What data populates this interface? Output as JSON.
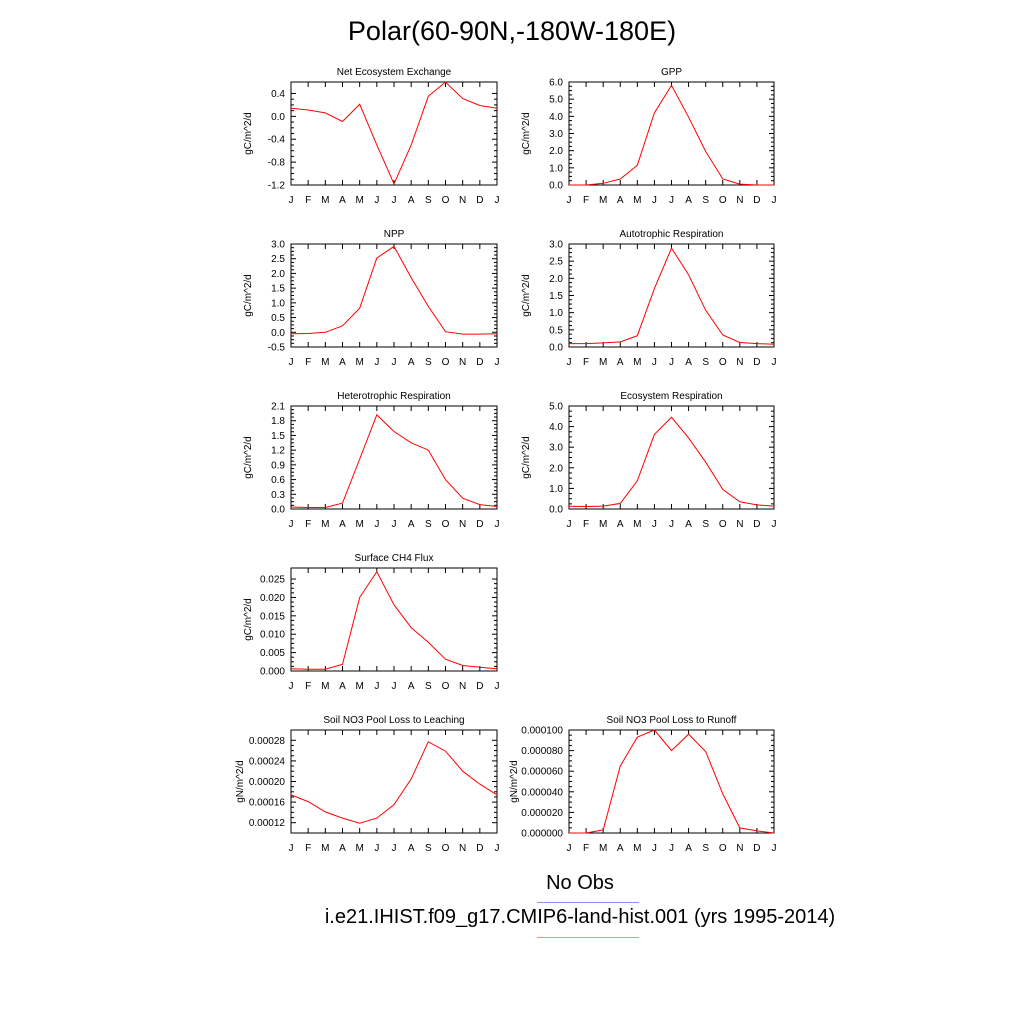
{
  "figure": {
    "title": "Polar(60-90N,-180W-180E)"
  },
  "legend": {
    "obs_label": "No Obs",
    "obs_color": "#8f8ff0",
    "model_label": "i.e21.IHIST.f09_g17.CMIP6-land-hist.001 (yrs 1995-2014)",
    "model_color": "#f08f8f"
  },
  "chart_data": [
    {
      "type": "line",
      "title": "Net Ecosystem Exchange",
      "ylabel": "gC/m^2/d",
      "xlabel": "",
      "categories": [
        "J",
        "F",
        "M",
        "A",
        "M",
        "J",
        "J",
        "A",
        "S",
        "O",
        "N",
        "D",
        "J"
      ],
      "ylim": [
        -1.2,
        0.6
      ],
      "yticks": [
        -1.2,
        -0.8,
        -0.4,
        0.0,
        0.4
      ],
      "yticklabels": [
        "-1.2",
        "-0.8",
        "-0.4",
        "0.0",
        "0.4"
      ],
      "series": [
        {
          "color": "#ff0000",
          "values": [
            0.14,
            0.11,
            0.06,
            -0.09,
            0.21,
            -0.5,
            -1.18,
            -0.5,
            0.35,
            0.6,
            0.31,
            0.19,
            0.14
          ]
        }
      ]
    },
    {
      "type": "line",
      "title": "GPP",
      "ylabel": "gC/m^2/d",
      "xlabel": "",
      "categories": [
        "J",
        "F",
        "M",
        "A",
        "M",
        "J",
        "J",
        "A",
        "S",
        "O",
        "N",
        "D",
        "J"
      ],
      "ylim": [
        0.0,
        6.0
      ],
      "yticks": [
        0,
        1,
        2,
        3,
        4,
        5,
        6
      ],
      "yticklabels": [
        "0.0",
        "1.0",
        "2.0",
        "3.0",
        "4.0",
        "5.0",
        "6.0"
      ],
      "series": [
        {
          "color": "#ff0000",
          "values": [
            0.0,
            0.0,
            0.1,
            0.35,
            1.15,
            4.2,
            5.8,
            3.95,
            1.95,
            0.35,
            0.05,
            0.0,
            0.0
          ]
        }
      ]
    },
    {
      "type": "line",
      "title": "NPP",
      "ylabel": "gC/m^2/d",
      "xlabel": "",
      "categories": [
        "J",
        "F",
        "M",
        "A",
        "M",
        "J",
        "J",
        "A",
        "S",
        "O",
        "N",
        "D",
        "J"
      ],
      "ylim": [
        -0.5,
        3.0
      ],
      "yticks": [
        -0.5,
        0.0,
        0.5,
        1.0,
        1.5,
        2.0,
        2.5,
        3.0
      ],
      "yticklabels": [
        "-0.5",
        "0.0",
        "0.5",
        "1.0",
        "1.5",
        "2.0",
        "2.5",
        "3.0"
      ],
      "series": [
        {
          "color": "#ff0000",
          "values": [
            -0.05,
            -0.04,
            0.0,
            0.22,
            0.82,
            2.52,
            2.92,
            1.85,
            0.88,
            0.02,
            -0.06,
            -0.06,
            -0.05
          ]
        }
      ]
    },
    {
      "type": "line",
      "title": "Autotrophic Respiration",
      "ylabel": "gC/m^2/d",
      "xlabel": "",
      "categories": [
        "J",
        "F",
        "M",
        "A",
        "M",
        "J",
        "J",
        "A",
        "S",
        "O",
        "N",
        "D",
        "J"
      ],
      "ylim": [
        0.0,
        3.0
      ],
      "yticks": [
        0.0,
        0.5,
        1.0,
        1.5,
        2.0,
        2.5,
        3.0
      ],
      "yticklabels": [
        "0.0",
        "0.5",
        "1.0",
        "1.5",
        "2.0",
        "2.5",
        "3.0"
      ],
      "series": [
        {
          "color": "#ff0000",
          "values": [
            0.1,
            0.1,
            0.12,
            0.15,
            0.33,
            1.7,
            2.88,
            2.1,
            1.07,
            0.35,
            0.13,
            0.1,
            0.08
          ]
        }
      ]
    },
    {
      "type": "line",
      "title": "Heterotrophic Respiration",
      "ylabel": "gC/m^2/d",
      "xlabel": "",
      "categories": [
        "J",
        "F",
        "M",
        "A",
        "M",
        "J",
        "J",
        "A",
        "S",
        "O",
        "N",
        "D",
        "J"
      ],
      "ylim": [
        0.0,
        2.1
      ],
      "yticks": [
        0.0,
        0.3,
        0.6,
        0.9,
        1.2,
        1.5,
        1.8,
        2.1
      ],
      "yticklabels": [
        "0.0",
        "0.3",
        "0.6",
        "0.9",
        "1.2",
        "1.5",
        "1.8",
        "2.1"
      ],
      "series": [
        {
          "color": "#ff0000",
          "values": [
            0.04,
            0.03,
            0.03,
            0.12,
            1.02,
            1.92,
            1.58,
            1.35,
            1.2,
            0.6,
            0.22,
            0.09,
            0.05
          ]
        }
      ]
    },
    {
      "type": "line",
      "title": "Ecosystem Respiration",
      "ylabel": "gC/m^2/d",
      "xlabel": "",
      "categories": [
        "J",
        "F",
        "M",
        "A",
        "M",
        "J",
        "J",
        "A",
        "S",
        "O",
        "N",
        "D",
        "J"
      ],
      "ylim": [
        0.0,
        5.0
      ],
      "yticks": [
        0,
        1,
        2,
        3,
        4,
        5
      ],
      "yticklabels": [
        "0.0",
        "1.0",
        "2.0",
        "3.0",
        "4.0",
        "5.0"
      ],
      "series": [
        {
          "color": "#ff0000",
          "values": [
            0.13,
            0.12,
            0.14,
            0.27,
            1.37,
            3.62,
            4.45,
            3.45,
            2.27,
            0.95,
            0.35,
            0.2,
            0.14
          ]
        }
      ]
    },
    {
      "type": "line",
      "title": "Surface CH4 Flux",
      "ylabel": "gC/m^2/d",
      "xlabel": "",
      "categories": [
        "J",
        "F",
        "M",
        "A",
        "M",
        "J",
        "J",
        "A",
        "S",
        "O",
        "N",
        "D",
        "J"
      ],
      "ylim": [
        0.0,
        0.028
      ],
      "yticks": [
        0.0,
        0.005,
        0.01,
        0.015,
        0.02,
        0.025
      ],
      "yticklabels": [
        "0.000",
        "0.005",
        "0.010",
        "0.015",
        "0.020",
        "0.025"
      ],
      "series": [
        {
          "color": "#ff0000",
          "values": [
            0.0006,
            0.0005,
            0.0005,
            0.0018,
            0.02,
            0.027,
            0.018,
            0.0118,
            0.0078,
            0.0032,
            0.0015,
            0.001,
            0.0006
          ]
        }
      ]
    },
    {
      "type": "line",
      "title": "Soil NO3 Pool Loss to Leaching",
      "ylabel": "gN/m^2/d",
      "xlabel": "",
      "categories": [
        "J",
        "F",
        "M",
        "A",
        "M",
        "J",
        "J",
        "A",
        "S",
        "O",
        "N",
        "D",
        "J"
      ],
      "ylim": [
        0.0001,
        0.0003
      ],
      "yticks": [
        0.00012,
        0.00016,
        0.0002,
        0.00024,
        0.00028
      ],
      "yticklabels": [
        "0.00012",
        "0.00016",
        "0.00020",
        "0.00024",
        "0.00028"
      ],
      "series": [
        {
          "color": "#ff0000",
          "values": [
            0.000174,
            0.000161,
            0.000141,
            0.000129,
            0.000119,
            0.000129,
            0.000155,
            0.000205,
            0.000277,
            0.000259,
            0.00022,
            0.000195,
            0.000174
          ]
        }
      ]
    },
    {
      "type": "line",
      "title": "Soil NO3 Pool Loss to Runoff",
      "ylabel": "gN/m^2/d",
      "xlabel": "",
      "categories": [
        "J",
        "F",
        "M",
        "A",
        "M",
        "J",
        "J",
        "A",
        "S",
        "O",
        "N",
        "D",
        "J"
      ],
      "ylim": [
        0.0,
        0.0001
      ],
      "yticks": [
        0.0,
        2e-05,
        4e-05,
        6e-05,
        8e-05,
        0.0001
      ],
      "yticklabels": [
        "0.000000",
        "0.000020",
        "0.000040",
        "0.000060",
        "0.000080",
        "0.000100"
      ],
      "series": [
        {
          "color": "#ff0000",
          "values": [
            0.0,
            0.0,
            3e-06,
            6.5e-05,
            9.3e-05,
            0.0001,
            8e-05,
            9.6e-05,
            7.9e-05,
            3.8e-05,
            5e-06,
            2e-06,
            0.0
          ]
        }
      ]
    }
  ]
}
